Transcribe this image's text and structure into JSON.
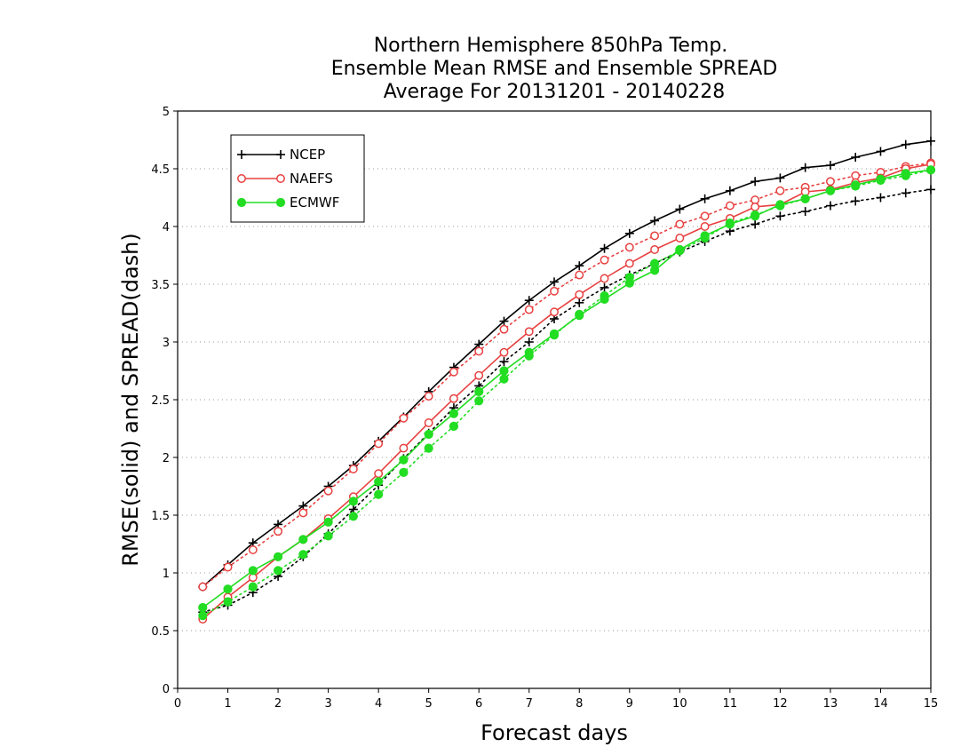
{
  "chart_data": {
    "type": "line",
    "title": [
      "Northern Hemisphere 850hPa Temp.",
      "Ensemble Mean RMSE and Ensemble SPREAD",
      "Average For 20131201 - 20140228"
    ],
    "xlabel": "Forecast days",
    "ylabel": "RMSE(solid)  and  SPREAD(dash)",
    "xlim": [
      0,
      15
    ],
    "ylim": [
      0,
      5
    ],
    "xticks": [
      "0",
      "1",
      "2",
      "3",
      "4",
      "5",
      "6",
      "7",
      "8",
      "9",
      "10",
      "11",
      "12",
      "13",
      "14",
      "15"
    ],
    "yticks": [
      "0",
      "0.5",
      "1",
      "1.5",
      "2",
      "2.5",
      "3",
      "3.5",
      "4",
      "4.5",
      "5"
    ],
    "grid": "horizontal dotted",
    "legend_position": "top-left",
    "x": [
      0.5,
      1,
      1.5,
      2,
      2.5,
      3,
      3.5,
      4,
      4.5,
      5,
      5.5,
      6,
      6.5,
      7,
      7.5,
      8,
      8.5,
      9,
      9.5,
      10,
      10.5,
      11,
      11.5,
      12,
      12.5,
      13,
      13.5,
      14,
      14.5,
      15
    ],
    "series": [
      {
        "name": "NCEP",
        "color": "#000000",
        "marker": "plus",
        "rmse": [
          0.88,
          1.07,
          1.26,
          1.42,
          1.58,
          1.75,
          1.93,
          2.14,
          2.35,
          2.57,
          2.78,
          2.98,
          3.18,
          3.36,
          3.52,
          3.66,
          3.81,
          3.94,
          4.05,
          4.15,
          4.24,
          4.31,
          4.39,
          4.42,
          4.51,
          4.53,
          4.6,
          4.65,
          4.71,
          4.74
        ],
        "spread": [
          0.66,
          0.72,
          0.83,
          0.97,
          1.14,
          1.34,
          1.55,
          1.76,
          1.99,
          2.21,
          2.43,
          2.62,
          2.83,
          3.0,
          3.2,
          3.34,
          3.47,
          3.58,
          3.68,
          3.78,
          3.87,
          3.96,
          4.02,
          4.09,
          4.13,
          4.18,
          4.22,
          4.25,
          4.29,
          4.32
        ]
      },
      {
        "name": "NAEFS",
        "color": "#e84040",
        "marker": "open-circle",
        "rmse": [
          0.6,
          0.79,
          0.96,
          1.14,
          1.29,
          1.47,
          1.66,
          1.86,
          2.08,
          2.3,
          2.51,
          2.71,
          2.91,
          3.09,
          3.26,
          3.41,
          3.55,
          3.68,
          3.8,
          3.9,
          4.0,
          4.07,
          4.17,
          4.19,
          4.3,
          4.32,
          4.38,
          4.42,
          4.5,
          4.54
        ],
        "spread": [
          0.88,
          1.05,
          1.2,
          1.36,
          1.52,
          1.71,
          1.9,
          2.12,
          2.34,
          2.53,
          2.74,
          2.92,
          3.11,
          3.28,
          3.44,
          3.58,
          3.71,
          3.82,
          3.92,
          4.02,
          4.09,
          4.18,
          4.23,
          4.31,
          4.34,
          4.39,
          4.44,
          4.47,
          4.52,
          4.55
        ]
      },
      {
        "name": "ECMWF",
        "color": "#22dd22",
        "marker": "filled-circle",
        "rmse": [
          0.7,
          0.86,
          1.02,
          1.14,
          1.29,
          1.44,
          1.62,
          1.79,
          1.98,
          2.2,
          2.38,
          2.57,
          2.75,
          2.91,
          3.07,
          3.23,
          3.37,
          3.51,
          3.62,
          3.8,
          3.92,
          4.02,
          4.09,
          4.19,
          4.24,
          4.31,
          4.36,
          4.41,
          4.46,
          4.49
        ],
        "spread": [
          0.63,
          0.75,
          0.88,
          1.02,
          1.16,
          1.32,
          1.49,
          1.68,
          1.87,
          2.08,
          2.27,
          2.49,
          2.68,
          2.88,
          3.06,
          3.24,
          3.4,
          3.56,
          3.68,
          3.79,
          3.9,
          4.03,
          4.1,
          4.18,
          4.24,
          4.31,
          4.35,
          4.4,
          4.44,
          4.49
        ]
      }
    ]
  }
}
